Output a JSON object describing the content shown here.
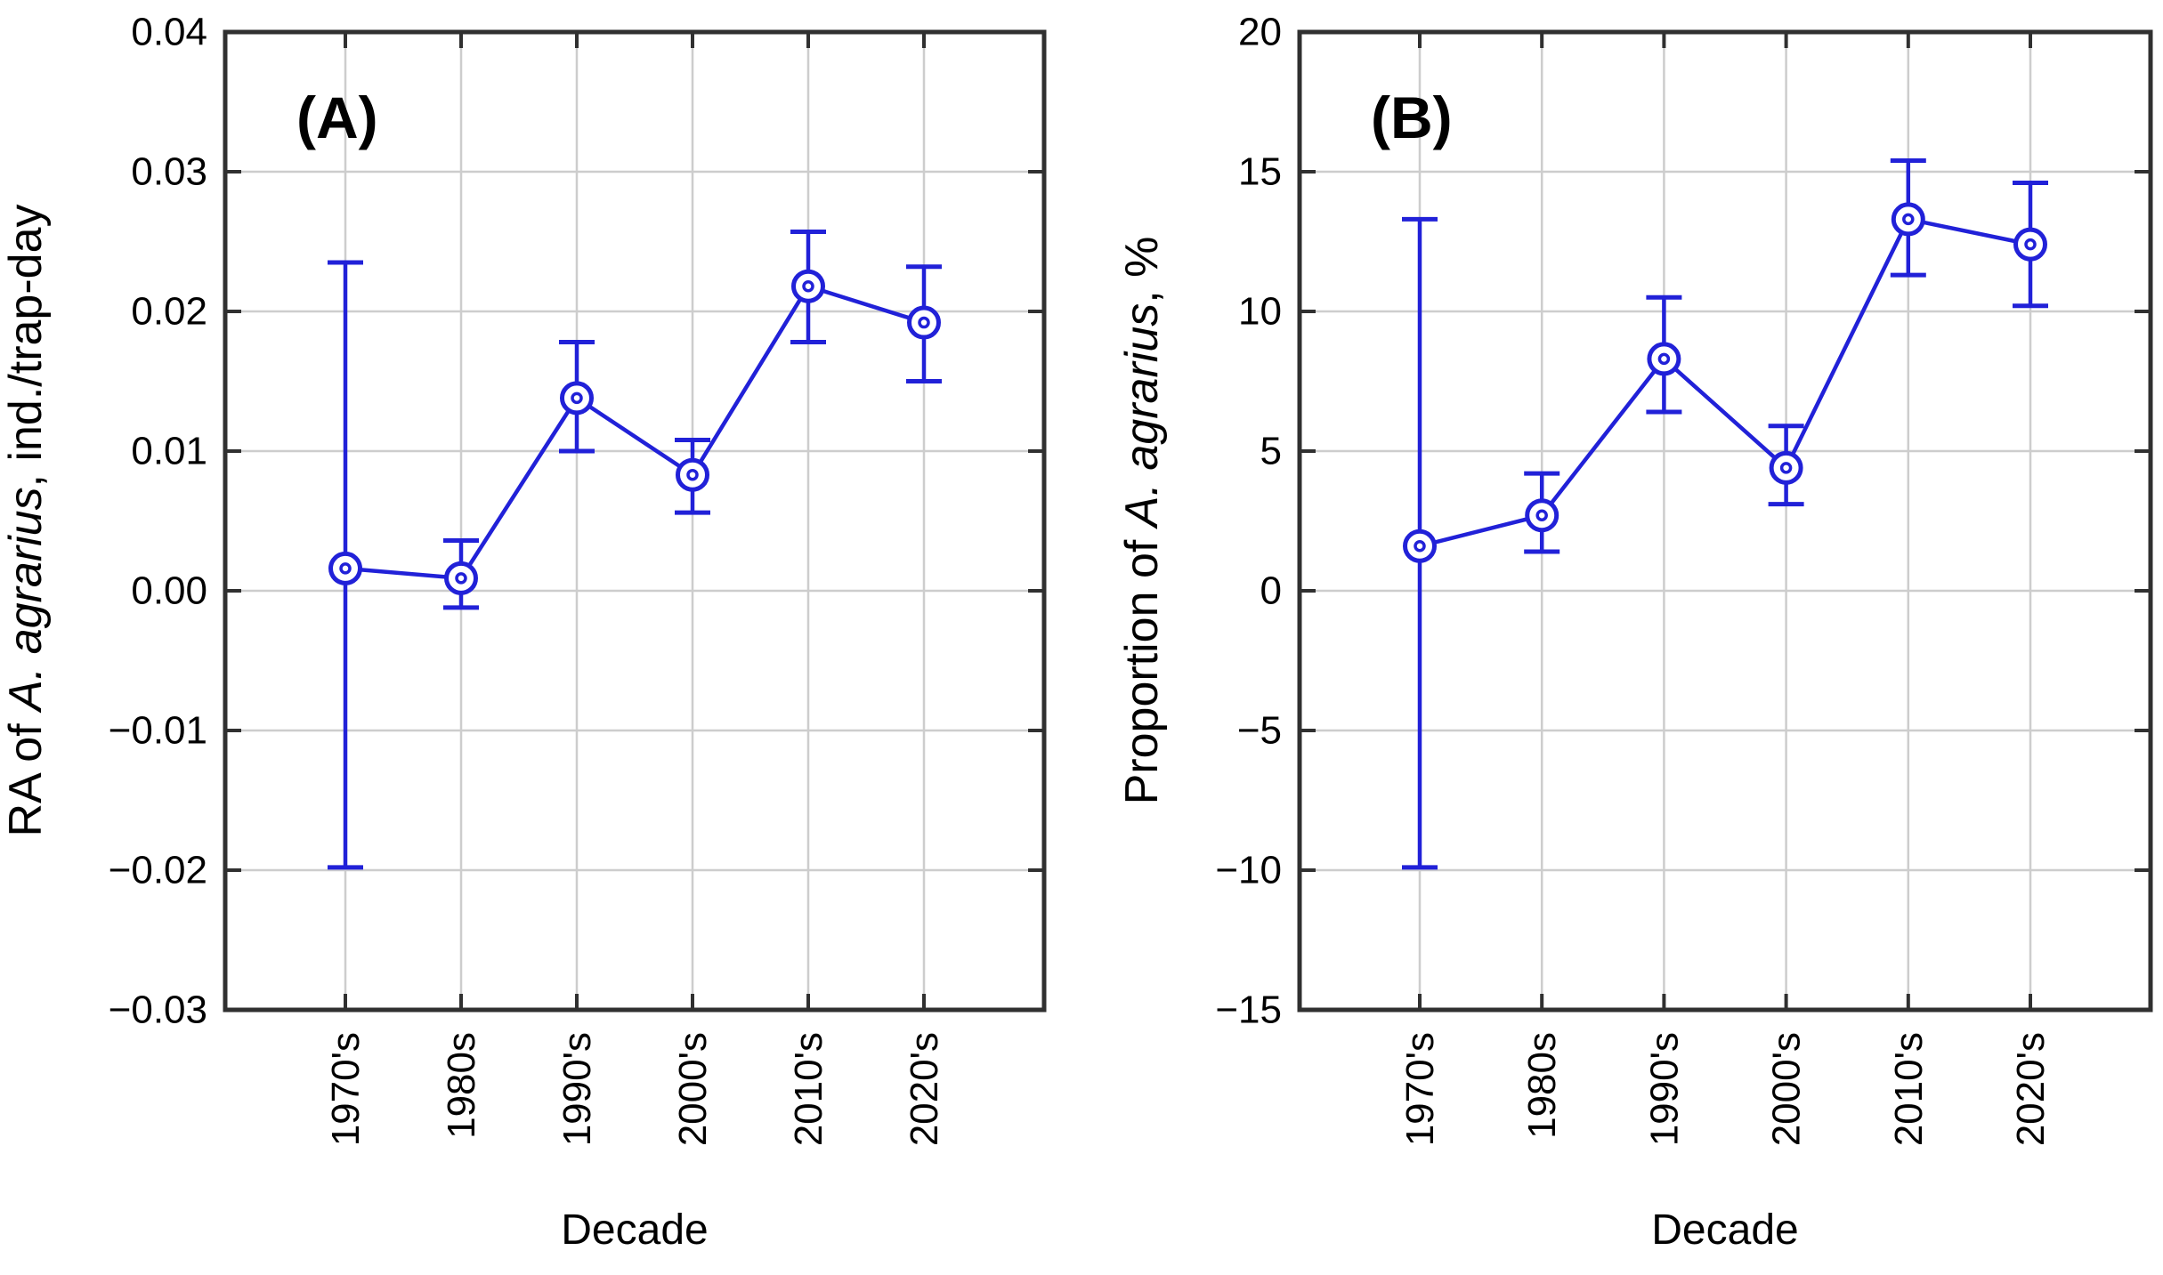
{
  "style": {
    "series_color": "#2121d8",
    "grid_color": "#cdcdcd",
    "frame_color": "#303030",
    "tick_color": "#303030",
    "text_color": "#000000",
    "background": "#ffffff",
    "marker": "open-circle-dot"
  },
  "chart_data": [
    {
      "type": "line",
      "panel_label": "(A)",
      "xlabel": "Decade",
      "ylabel_prefix": "RA of ",
      "ylabel_italic": "A. agrarius",
      "ylabel_suffix": ", ind./trap-day",
      "categories": [
        "1970's",
        "1980s",
        "1990's",
        "2000's",
        "2010's",
        "2020's"
      ],
      "values": [
        0.0016,
        0.0009,
        0.0138,
        0.0083,
        0.0218,
        0.0192
      ],
      "err_low": [
        -0.0198,
        -0.0012,
        0.01,
        0.0056,
        0.0178,
        0.015
      ],
      "err_high": [
        0.0235,
        0.0036,
        0.0178,
        0.0108,
        0.0257,
        0.0232
      ],
      "ylim": [
        -0.03,
        0.04
      ],
      "ytick_step": 0.01,
      "ytick_labels": [
        "0.04",
        "0.03",
        "0.02",
        "0.01",
        "0.00",
        "−0.01",
        "−0.02",
        "−0.03"
      ],
      "grid": true,
      "legend": "none"
    },
    {
      "type": "line",
      "panel_label": "(B)",
      "xlabel": "Decade",
      "ylabel_prefix": "Proportion of ",
      "ylabel_italic": "A. agrarius",
      "ylabel_suffix": ", %",
      "categories": [
        "1970's",
        "1980s",
        "1990's",
        "2000's",
        "2010's",
        "2020's"
      ],
      "values": [
        1.6,
        2.7,
        8.3,
        4.4,
        13.3,
        12.4
      ],
      "err_low": [
        -9.9,
        1.4,
        6.4,
        3.1,
        11.3,
        10.2
      ],
      "err_high": [
        13.3,
        4.2,
        10.5,
        5.9,
        15.4,
        14.6
      ],
      "ylim": [
        -15,
        20
      ],
      "ytick_step": 5,
      "ytick_labels": [
        "20",
        "15",
        "10",
        "5",
        "0",
        "−5",
        "−10",
        "−15"
      ],
      "grid": true,
      "legend": "none"
    }
  ]
}
